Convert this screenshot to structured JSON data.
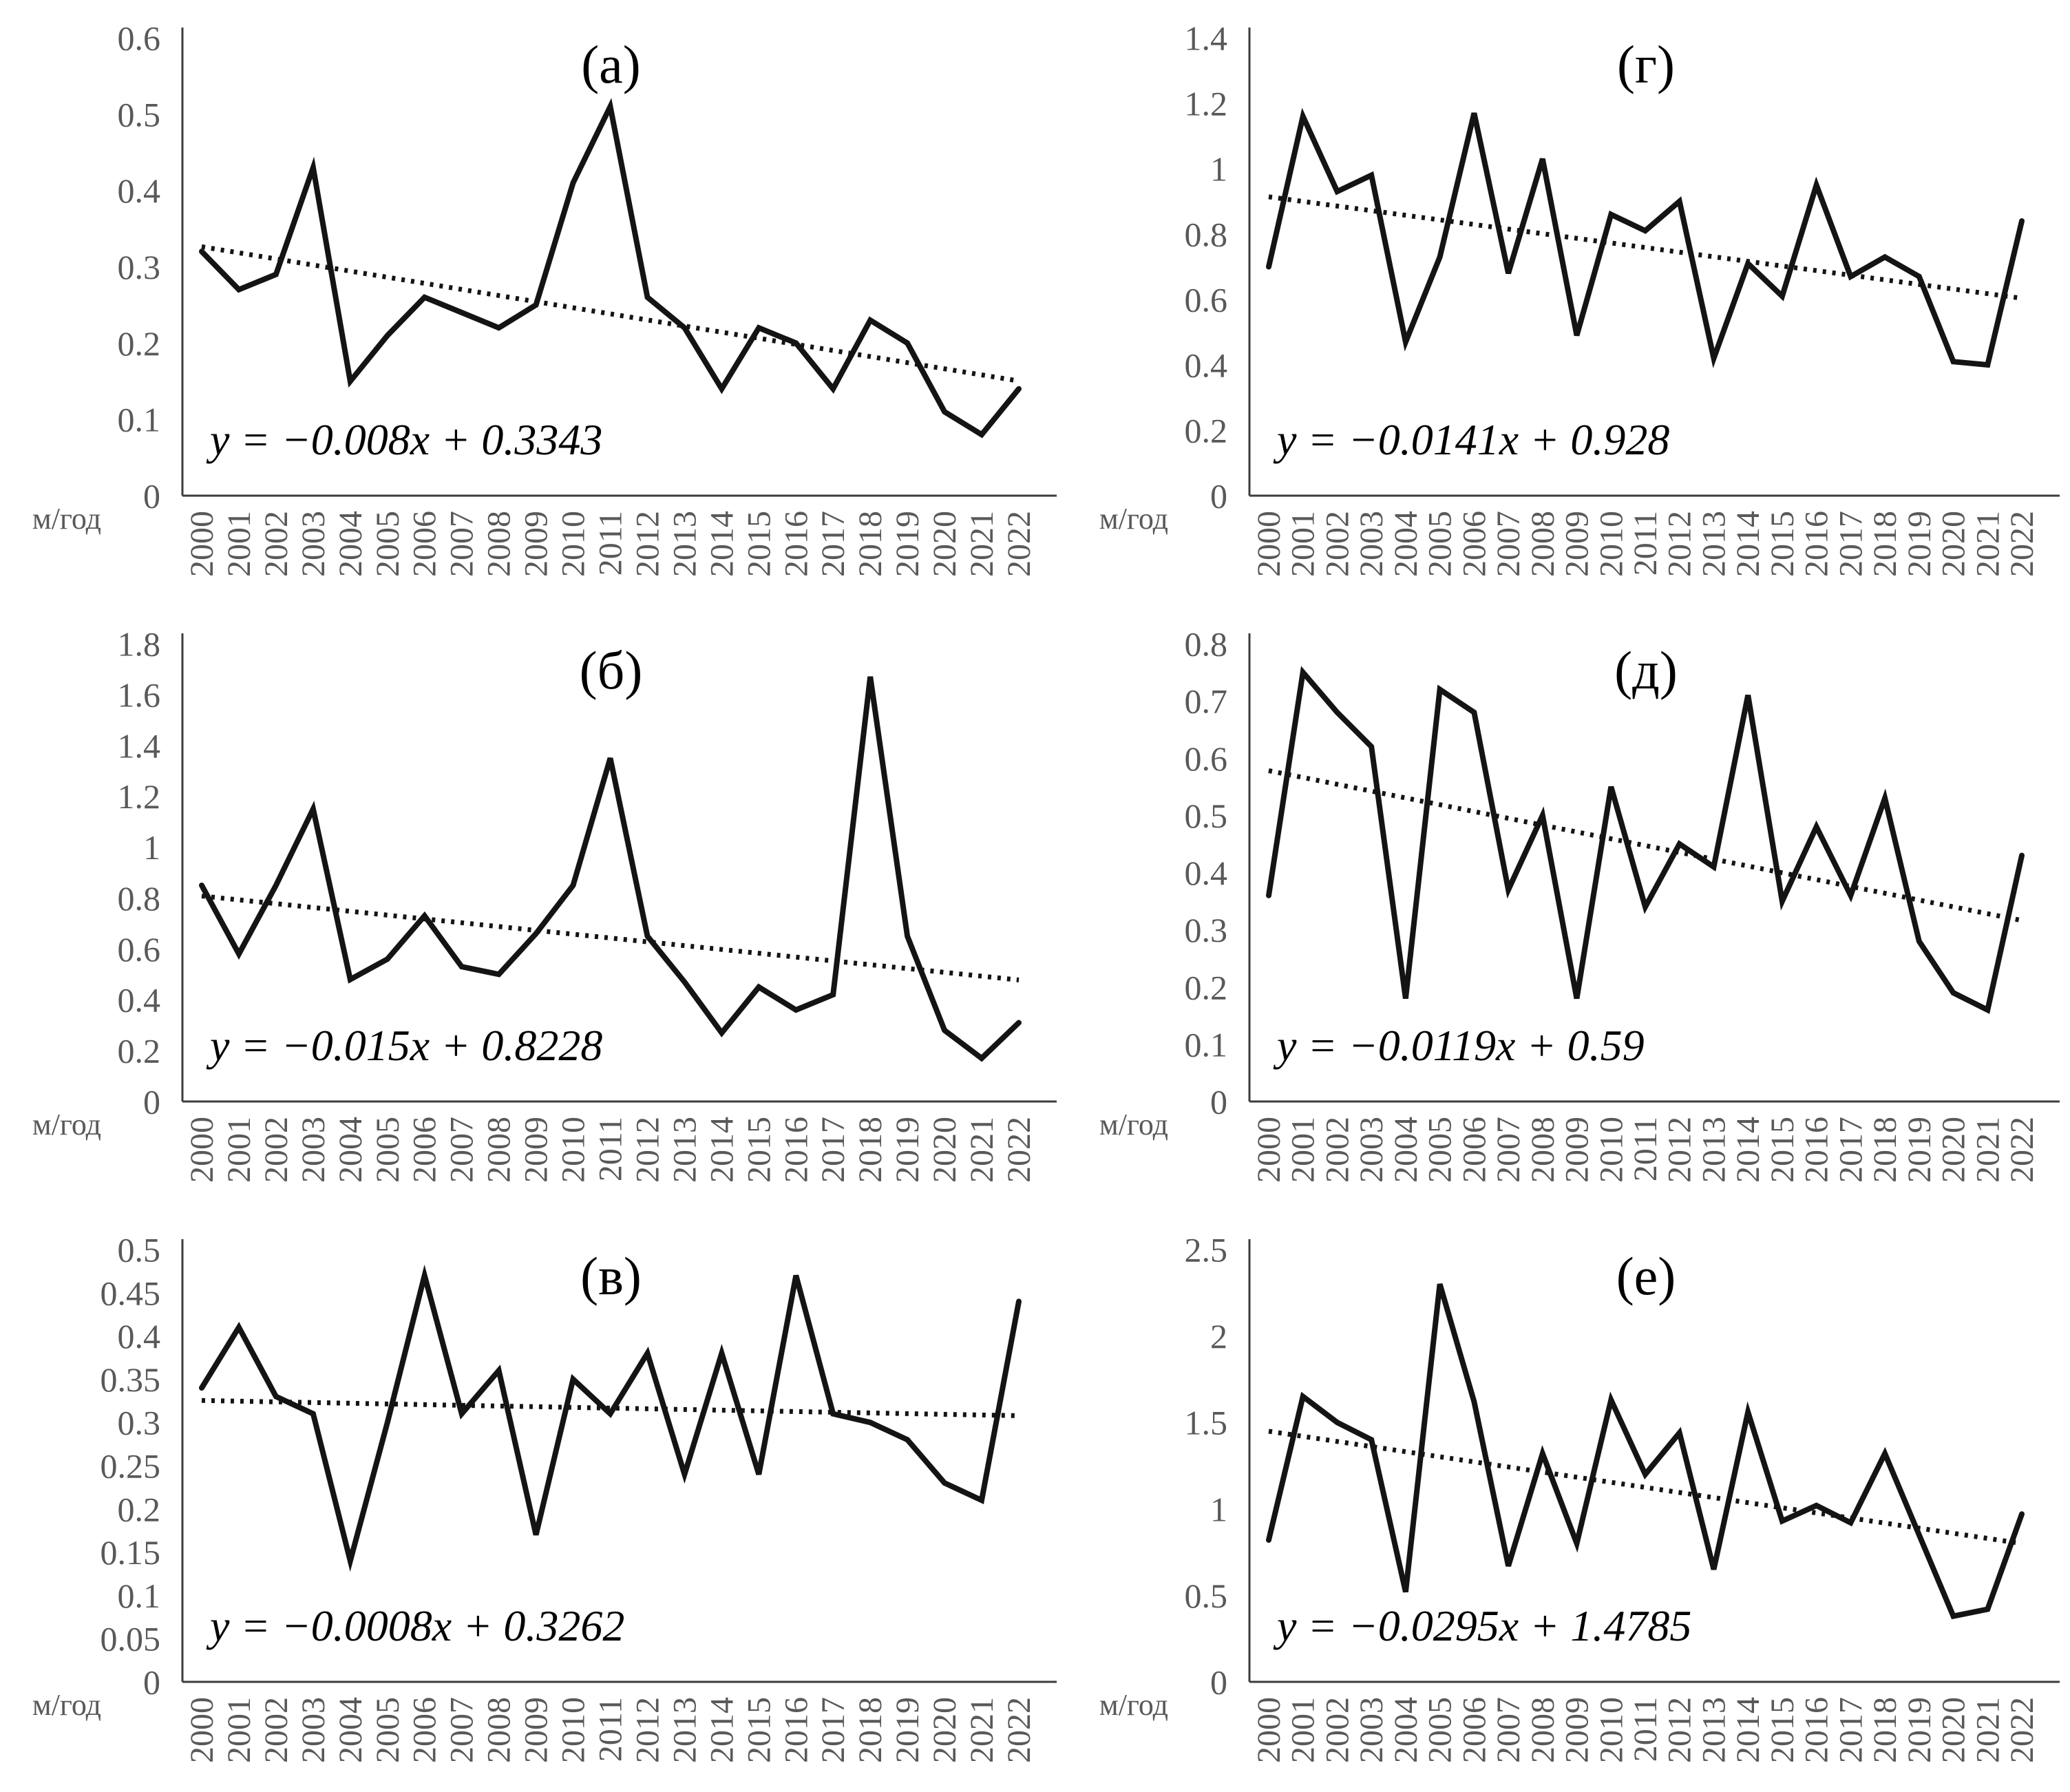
{
  "figure_title": "",
  "years": [
    2000,
    2001,
    2002,
    2003,
    2004,
    2005,
    2006,
    2007,
    2008,
    2009,
    2010,
    2011,
    2012,
    2013,
    2014,
    2015,
    2016,
    2017,
    2018,
    2019,
    2020,
    2021,
    2022
  ],
  "colors": {
    "series_line": "#141414",
    "trend_line": "#141414",
    "axis_line": "#3c3c3c",
    "tick_text": "#595959",
    "title_text": "#000000"
  },
  "chart_data": [
    {
      "type": "line",
      "label": "(а)",
      "unit": "м/год",
      "equation": "y = −0.008x + 0.3343",
      "trend": {
        "slope": -0.008,
        "intercept": 0.3343
      },
      "ylim": [
        0,
        0.6
      ],
      "ytick_step": 0.1,
      "ytick_labels": [
        "0",
        "0.1",
        "0.2",
        "0.3",
        "0.4",
        "0.5",
        "0.6"
      ],
      "xlabel": "",
      "ylabel": "м/год",
      "grid": "off",
      "values": [
        0.32,
        0.27,
        0.29,
        0.43,
        0.15,
        0.21,
        0.26,
        0.24,
        0.22,
        0.25,
        0.41,
        0.51,
        0.26,
        0.22,
        0.14,
        0.22,
        0.2,
        0.14,
        0.23,
        0.2,
        0.11,
        0.08,
        0.14
      ]
    },
    {
      "type": "line",
      "label": "(б)",
      "unit": "м/год",
      "equation": "y = −0.015x + 0.8228",
      "trend": {
        "slope": -0.015,
        "intercept": 0.8228
      },
      "ylim": [
        0,
        1.8
      ],
      "ytick_step": 0.2,
      "ytick_labels": [
        "0",
        "0.2",
        "0.4",
        "0.6",
        "0.8",
        "1",
        "1.2",
        "1.4",
        "1.6",
        "1.8"
      ],
      "xlabel": "",
      "ylabel": "м/год",
      "grid": "off",
      "values": [
        0.85,
        0.58,
        0.85,
        1.15,
        0.48,
        0.56,
        0.73,
        0.53,
        0.5,
        0.66,
        0.85,
        1.35,
        0.65,
        0.47,
        0.27,
        0.45,
        0.36,
        0.42,
        1.67,
        0.65,
        0.28,
        0.17,
        0.31
      ]
    },
    {
      "type": "line",
      "label": "(в)",
      "unit": "м/год",
      "equation": "y = −0.0008x + 0.3262",
      "trend": {
        "slope": -0.0008,
        "intercept": 0.3262
      },
      "ylim": [
        0,
        0.5
      ],
      "ytick_step": 0.05,
      "ytick_labels": [
        "0",
        "0.05",
        "0.1",
        "0.15",
        "0.2",
        "0.25",
        "0.3",
        "0.35",
        "0.4",
        "0.45",
        "0.5"
      ],
      "xlabel": "",
      "ylabel": "м/год",
      "grid": "off",
      "values": [
        0.34,
        0.41,
        0.33,
        0.31,
        0.14,
        0.3,
        0.47,
        0.31,
        0.36,
        0.17,
        0.35,
        0.31,
        0.38,
        0.24,
        0.38,
        0.24,
        0.47,
        0.31,
        0.3,
        0.28,
        0.23,
        0.21,
        0.44
      ]
    },
    {
      "type": "line",
      "label": "(г)",
      "unit": "м/год",
      "equation": "y = −0.0141x + 0.928",
      "trend": {
        "slope": -0.0141,
        "intercept": 0.928
      },
      "ylim": [
        0,
        1.4
      ],
      "ytick_step": 0.2,
      "ytick_labels": [
        "0",
        "0.2",
        "0.4",
        "0.6",
        "0.8",
        "1",
        "1.2",
        "1.4"
      ],
      "xlabel": "",
      "ylabel": "м/год",
      "grid": "off",
      "values": [
        0.7,
        1.16,
        0.93,
        0.98,
        0.47,
        0.73,
        1.17,
        0.68,
        1.03,
        0.49,
        0.86,
        0.81,
        0.9,
        0.42,
        0.71,
        0.61,
        0.95,
        0.67,
        0.73,
        0.67,
        0.41,
        0.4,
        0.84
      ]
    },
    {
      "type": "line",
      "label": "(д)",
      "unit": "м/год",
      "equation": "y = −0.0119x + 0.59",
      "trend": {
        "slope": -0.0119,
        "intercept": 0.59
      },
      "ylim": [
        0,
        0.8
      ],
      "ytick_step": 0.1,
      "ytick_labels": [
        "0",
        "0.1",
        "0.2",
        "0.3",
        "0.4",
        "0.5",
        "0.6",
        "0.7",
        "0.8"
      ],
      "xlabel": "",
      "ylabel": "м/год",
      "grid": "off",
      "values": [
        0.36,
        0.75,
        0.68,
        0.62,
        0.18,
        0.72,
        0.68,
        0.37,
        0.5,
        0.18,
        0.55,
        0.34,
        0.45,
        0.41,
        0.71,
        0.35,
        0.48,
        0.36,
        0.53,
        0.28,
        0.19,
        0.16,
        0.43
      ]
    },
    {
      "type": "line",
      "label": "(е)",
      "unit": "м/год",
      "equation": "y = −0.0295x + 1.4785",
      "trend": {
        "slope": -0.0295,
        "intercept": 1.4785
      },
      "ylim": [
        0,
        2.5
      ],
      "ytick_step": 0.5,
      "ytick_labels": [
        "0",
        "0.5",
        "1",
        "1.5",
        "2",
        "2.5"
      ],
      "xlabel": "",
      "ylabel": "м/год",
      "grid": "off",
      "values": [
        0.82,
        1.65,
        1.5,
        1.4,
        0.52,
        2.3,
        1.62,
        0.67,
        1.32,
        0.8,
        1.63,
        1.2,
        1.44,
        0.65,
        1.56,
        0.93,
        1.02,
        0.92,
        1.32,
        0.85,
        0.38,
        0.42,
        0.97
      ]
    }
  ]
}
